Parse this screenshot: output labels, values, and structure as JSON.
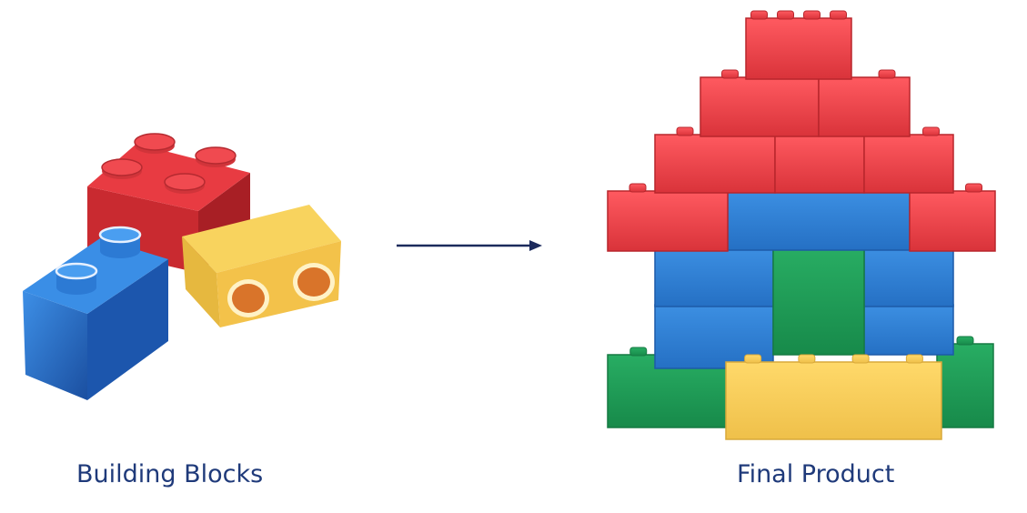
{
  "captions": {
    "left": "Building Blocks",
    "right": "Final Product"
  },
  "colors": {
    "red": "#e33840",
    "red_dark": "#b8262c",
    "blue": "#2b7fd6",
    "blue_dark": "#1d5aa8",
    "yellow": "#f6cd56",
    "yellow_dark": "#d9a93a",
    "green": "#1f9b57",
    "green_dark": "#167a43",
    "arrow": "#1b2a5c",
    "caption": "#1f3a7a"
  },
  "icons": {
    "arrow": "right-arrow-icon",
    "loose_bricks": "loose-bricks-illustration",
    "house": "brick-house-illustration"
  }
}
